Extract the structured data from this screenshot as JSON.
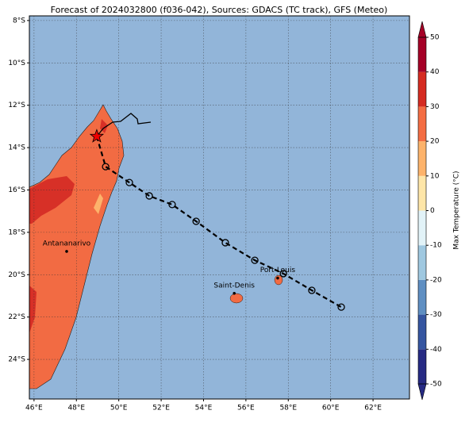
{
  "map": {
    "title": "Forecast of 2024032800 (f036-042), Sources: GDACS (TC track), GFS (Meteo)",
    "xlim": [
      45.78,
      63.72
    ],
    "ylim": [
      -25.87,
      -7.78
    ],
    "xticks": [
      {
        "value": 46,
        "label": "46°E"
      },
      {
        "value": 48,
        "label": "48°E"
      },
      {
        "value": 50,
        "label": "50°E"
      },
      {
        "value": 52,
        "label": "52°E"
      },
      {
        "value": 54,
        "label": "54°E"
      },
      {
        "value": 56,
        "label": "56°E"
      },
      {
        "value": 58,
        "label": "58°E"
      },
      {
        "value": 60,
        "label": "60°E"
      },
      {
        "value": 62,
        "label": "62°E"
      }
    ],
    "yticks": [
      {
        "value": -8,
        "label": "8°S"
      },
      {
        "value": -10,
        "label": "10°S"
      },
      {
        "value": -12,
        "label": "12°S"
      },
      {
        "value": -14,
        "label": "14°S"
      },
      {
        "value": -16,
        "label": "16°S"
      },
      {
        "value": -18,
        "label": "18°S"
      },
      {
        "value": -20,
        "label": "20°S"
      },
      {
        "value": -22,
        "label": "22°S"
      },
      {
        "value": -24,
        "label": "24°S"
      }
    ],
    "grid": true,
    "cities": [
      {
        "name": "Antananarivo",
        "lon": 47.54,
        "lat": -18.9
      },
      {
        "name": "Port-Louis",
        "lon": 57.5,
        "lat": -20.16
      },
      {
        "name": "Saint-Denis",
        "lon": 55.45,
        "lat": -20.88
      }
    ],
    "track": {
      "lon": [
        48.96,
        49.38,
        50.5,
        51.44,
        52.52,
        53.65,
        55.03,
        56.42,
        57.77,
        59.11,
        60.5
      ],
      "lat": [
        -13.47,
        -14.9,
        -15.65,
        -16.28,
        -16.69,
        -17.48,
        -18.49,
        -19.32,
        -19.95,
        -20.74,
        -21.53
      ]
    }
  },
  "colorbar": {
    "label": "Max Temperature (°C)",
    "ticks": [
      -50,
      -40,
      -30,
      -20,
      -10,
      0,
      10,
      20,
      30,
      40,
      50
    ],
    "colors": [
      "#262a83",
      "#3555a0",
      "#5f8fc2",
      "#9fc8e0",
      "#e2f3f8",
      "#fffbe0",
      "#fee6a8",
      "#fdb36b",
      "#f46d43",
      "#d52b21",
      "#a50026"
    ]
  }
}
